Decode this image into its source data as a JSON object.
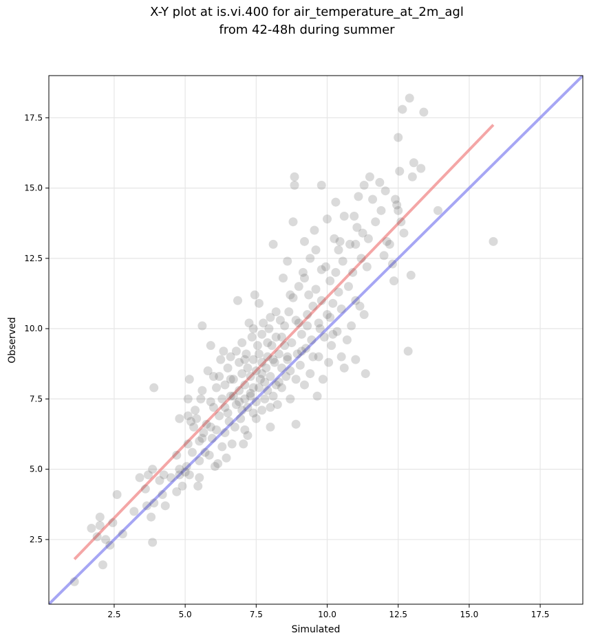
{
  "chart_data": {
    "type": "scatter",
    "title": [
      "X-Y plot at is.vi.400 for air_temperature_at_2m_agl",
      "from 42-48h during summer"
    ],
    "xlabel": "Simulated",
    "ylabel": "Observed",
    "xlim": [
      0.2,
      19.0
    ],
    "ylim": [
      0.2,
      19.0
    ],
    "grid": true,
    "xticks": [
      2.5,
      5.0,
      7.5,
      10.0,
      12.5,
      15.0,
      17.5
    ],
    "yticks": [
      2.5,
      5.0,
      7.5,
      10.0,
      12.5,
      15.0,
      17.5
    ],
    "xtick_labels": [
      "2.5",
      "5.0",
      "7.5",
      "10.0",
      "12.5",
      "15.0",
      "17.5"
    ],
    "ytick_labels": [
      "2.5",
      "5.0",
      "7.5",
      "10.0",
      "12.5",
      "15.0",
      "17.5"
    ],
    "colors": {
      "points": "#555555",
      "fit_line": "#f08080",
      "identity_line": "#8080f0",
      "grid": "#e6e6e6"
    },
    "lines": [
      {
        "kind": "identity",
        "x": [
          0.2,
          19.0
        ],
        "y": [
          0.2,
          19.0
        ]
      },
      {
        "kind": "fit",
        "x": [
          1.1,
          15.85
        ],
        "y": [
          1.8,
          17.25
        ]
      }
    ],
    "points": [
      [
        1.1,
        1.0
      ],
      [
        1.7,
        2.9
      ],
      [
        1.9,
        2.6
      ],
      [
        2.0,
        3.3
      ],
      [
        2.0,
        3.0
      ],
      [
        2.1,
        1.6
      ],
      [
        2.2,
        2.5
      ],
      [
        2.35,
        2.3
      ],
      [
        2.45,
        3.1
      ],
      [
        2.6,
        4.1
      ],
      [
        2.8,
        2.7
      ],
      [
        3.2,
        3.5
      ],
      [
        3.4,
        4.7
      ],
      [
        3.6,
        4.3
      ],
      [
        3.65,
        3.7
      ],
      [
        3.7,
        4.8
      ],
      [
        3.8,
        3.3
      ],
      [
        3.85,
        2.4
      ],
      [
        3.85,
        5.0
      ],
      [
        3.9,
        7.9
      ],
      [
        3.9,
        3.8
      ],
      [
        4.1,
        4.6
      ],
      [
        4.2,
        4.1
      ],
      [
        4.25,
        4.8
      ],
      [
        4.3,
        3.7
      ],
      [
        4.5,
        4.7
      ],
      [
        4.7,
        4.2
      ],
      [
        4.7,
        5.5
      ],
      [
        4.8,
        4.8
      ],
      [
        4.8,
        5.0
      ],
      [
        4.8,
        6.8
      ],
      [
        4.9,
        4.4
      ],
      [
        5.0,
        4.9
      ],
      [
        5.05,
        5.1
      ],
      [
        5.1,
        5.9
      ],
      [
        5.1,
        6.9
      ],
      [
        5.1,
        7.5
      ],
      [
        5.15,
        4.8
      ],
      [
        5.15,
        8.2
      ],
      [
        5.2,
        6.7
      ],
      [
        5.25,
        5.6
      ],
      [
        5.3,
        6.5
      ],
      [
        5.35,
        7.1
      ],
      [
        5.4,
        6.8
      ],
      [
        5.45,
        4.4
      ],
      [
        5.5,
        4.7
      ],
      [
        5.5,
        5.3
      ],
      [
        5.5,
        6.0
      ],
      [
        5.55,
        7.5
      ],
      [
        5.6,
        7.8
      ],
      [
        5.6,
        10.1
      ],
      [
        5.65,
        6.3
      ],
      [
        5.7,
        5.6
      ],
      [
        5.75,
        6.6
      ],
      [
        5.8,
        8.5
      ],
      [
        5.85,
        5.5
      ],
      [
        5.9,
        7.4
      ],
      [
        5.9,
        9.4
      ],
      [
        5.95,
        6.1
      ],
      [
        6.0,
        7.2
      ],
      [
        6.0,
        8.3
      ],
      [
        6.05,
        5.1
      ],
      [
        6.1,
        6.4
      ],
      [
        6.1,
        7.9
      ],
      [
        6.15,
        5.2
      ],
      [
        6.2,
        6.9
      ],
      [
        6.25,
        8.9
      ],
      [
        6.3,
        5.8
      ],
      [
        6.3,
        7.5
      ],
      [
        6.35,
        9.2
      ],
      [
        6.4,
        6.3
      ],
      [
        6.4,
        8.0
      ],
      [
        6.45,
        5.4
      ],
      [
        6.5,
        7.0
      ],
      [
        6.5,
        8.6
      ],
      [
        6.55,
        6.7
      ],
      [
        6.6,
        7.6
      ],
      [
        6.6,
        9.0
      ],
      [
        6.65,
        5.9
      ],
      [
        6.7,
        8.2
      ],
      [
        6.75,
        6.5
      ],
      [
        6.8,
        7.3
      ],
      [
        6.8,
        9.2
      ],
      [
        6.85,
        11.0
      ],
      [
        6.9,
        7.8
      ],
      [
        6.9,
        8.8
      ],
      [
        6.95,
        6.8
      ],
      [
        7.0,
        7.1
      ],
      [
        7.0,
        8.4
      ],
      [
        7.0,
        9.5
      ],
      [
        7.05,
        5.9
      ],
      [
        7.1,
        6.4
      ],
      [
        7.1,
        7.5
      ],
      [
        7.1,
        8.0
      ],
      [
        7.15,
        9.1
      ],
      [
        7.2,
        6.2
      ],
      [
        7.2,
        7.2
      ],
      [
        7.2,
        8.6
      ],
      [
        7.25,
        10.2
      ],
      [
        7.3,
        7.7
      ],
      [
        7.3,
        8.3
      ],
      [
        7.35,
        9.7
      ],
      [
        7.4,
        7.0
      ],
      [
        7.4,
        7.9
      ],
      [
        7.4,
        8.9
      ],
      [
        7.45,
        11.2
      ],
      [
        7.5,
        6.8
      ],
      [
        7.5,
        7.4
      ],
      [
        7.5,
        8.5
      ],
      [
        7.55,
        9.4
      ],
      [
        7.6,
        10.9
      ],
      [
        7.6,
        7.9
      ],
      [
        7.65,
        8.2
      ],
      [
        7.7,
        7.1
      ],
      [
        7.7,
        8.8
      ],
      [
        7.7,
        9.8
      ],
      [
        7.75,
        10.2
      ],
      [
        7.8,
        7.5
      ],
      [
        7.8,
        8.1
      ],
      [
        7.85,
        8.6
      ],
      [
        7.9,
        9.0
      ],
      [
        7.9,
        7.8
      ],
      [
        7.95,
        10.0
      ],
      [
        8.0,
        6.5
      ],
      [
        8.0,
        7.2
      ],
      [
        8.0,
        8.3
      ],
      [
        8.05,
        9.4
      ],
      [
        8.1,
        7.6
      ],
      [
        8.1,
        13.0
      ],
      [
        8.15,
        8.8
      ],
      [
        8.2,
        9.7
      ],
      [
        8.2,
        10.6
      ],
      [
        8.25,
        7.3
      ],
      [
        8.3,
        8.1
      ],
      [
        8.3,
        9.1
      ],
      [
        8.35,
        10.3
      ],
      [
        8.4,
        7.9
      ],
      [
        8.4,
        8.6
      ],
      [
        8.45,
        11.8
      ],
      [
        8.5,
        9.4
      ],
      [
        8.5,
        10.1
      ],
      [
        8.55,
        8.3
      ],
      [
        8.6,
        12.4
      ],
      [
        8.6,
        9.0
      ],
      [
        8.65,
        10.6
      ],
      [
        8.7,
        7.5
      ],
      [
        8.7,
        8.5
      ],
      [
        8.75,
        9.5
      ],
      [
        8.8,
        11.1
      ],
      [
        8.8,
        13.8
      ],
      [
        8.85,
        15.4
      ],
      [
        8.85,
        15.1
      ],
      [
        8.9,
        6.6
      ],
      [
        8.9,
        8.2
      ],
      [
        8.95,
        9.1
      ],
      [
        9.0,
        10.2
      ],
      [
        9.0,
        11.5
      ],
      [
        9.05,
        8.7
      ],
      [
        9.1,
        9.8
      ],
      [
        9.15,
        12.0
      ],
      [
        9.2,
        13.1
      ],
      [
        9.2,
        8.0
      ],
      [
        9.25,
        9.3
      ],
      [
        9.3,
        10.5
      ],
      [
        9.35,
        11.2
      ],
      [
        9.4,
        12.5
      ],
      [
        9.4,
        8.4
      ],
      [
        9.45,
        9.6
      ],
      [
        9.5,
        10.8
      ],
      [
        9.55,
        13.5
      ],
      [
        9.6,
        11.4
      ],
      [
        9.6,
        12.8
      ],
      [
        9.65,
        7.6
      ],
      [
        9.7,
        9.0
      ],
      [
        9.75,
        10.0
      ],
      [
        9.8,
        15.1
      ],
      [
        9.8,
        11.0
      ],
      [
        9.85,
        8.2
      ],
      [
        9.9,
        9.7
      ],
      [
        9.95,
        12.2
      ],
      [
        10.0,
        13.9
      ],
      [
        10.0,
        10.5
      ],
      [
        10.05,
        8.8
      ],
      [
        10.1,
        11.7
      ],
      [
        10.15,
        9.4
      ],
      [
        10.2,
        10.9
      ],
      [
        10.25,
        13.2
      ],
      [
        10.3,
        14.5
      ],
      [
        10.3,
        12.0
      ],
      [
        10.35,
        9.9
      ],
      [
        10.4,
        11.3
      ],
      [
        10.45,
        13.1
      ],
      [
        10.5,
        9.0
      ],
      [
        10.5,
        10.7
      ],
      [
        10.55,
        12.4
      ],
      [
        10.6,
        14.0
      ],
      [
        10.6,
        8.6
      ],
      [
        10.7,
        9.6
      ],
      [
        10.75,
        11.5
      ],
      [
        10.8,
        13.0
      ],
      [
        10.85,
        10.1
      ],
      [
        10.9,
        12.0
      ],
      [
        10.95,
        14.0
      ],
      [
        11.0,
        8.9
      ],
      [
        11.0,
        11.0
      ],
      [
        11.05,
        13.6
      ],
      [
        11.1,
        14.7
      ],
      [
        11.15,
        10.8
      ],
      [
        11.2,
        12.5
      ],
      [
        11.25,
        13.4
      ],
      [
        11.3,
        15.1
      ],
      [
        11.3,
        10.5
      ],
      [
        11.35,
        8.4
      ],
      [
        11.4,
        12.2
      ],
      [
        11.45,
        13.2
      ],
      [
        11.5,
        15.4
      ],
      [
        11.6,
        14.6
      ],
      [
        11.7,
        13.8
      ],
      [
        11.85,
        15.2
      ],
      [
        11.9,
        14.2
      ],
      [
        12.0,
        12.6
      ],
      [
        12.05,
        14.9
      ],
      [
        12.1,
        13.1
      ],
      [
        12.2,
        13.0
      ],
      [
        12.3,
        12.3
      ],
      [
        12.35,
        11.7
      ],
      [
        12.4,
        14.6
      ],
      [
        12.45,
        14.4
      ],
      [
        12.5,
        16.8
      ],
      [
        12.5,
        14.2
      ],
      [
        12.55,
        15.6
      ],
      [
        12.6,
        13.8
      ],
      [
        12.65,
        17.8
      ],
      [
        12.7,
        13.4
      ],
      [
        12.85,
        9.2
      ],
      [
        12.9,
        18.2
      ],
      [
        12.95,
        11.9
      ],
      [
        13.0,
        15.4
      ],
      [
        13.05,
        15.9
      ],
      [
        13.3,
        15.7
      ],
      [
        13.4,
        17.7
      ],
      [
        13.9,
        14.2
      ],
      [
        15.85,
        13.1
      ],
      [
        6.2,
        8.3
      ],
      [
        6.7,
        7.6
      ],
      [
        7.1,
        8.9
      ],
      [
        7.6,
        9.1
      ],
      [
        8.1,
        8.9
      ],
      [
        8.4,
        9.7
      ],
      [
        8.9,
        10.3
      ],
      [
        9.3,
        10.1
      ],
      [
        9.7,
        10.2
      ],
      [
        10.1,
        10.4
      ],
      [
        6.9,
        7.4
      ],
      [
        7.3,
        7.6
      ],
      [
        7.7,
        8.4
      ],
      [
        8.2,
        8.0
      ],
      [
        8.6,
        8.9
      ],
      [
        9.1,
        9.2
      ],
      [
        9.5,
        9.0
      ],
      [
        10.2,
        9.8
      ],
      [
        6.4,
        7.2
      ],
      [
        5.9,
        6.5
      ],
      [
        5.6,
        6.1
      ],
      [
        6.6,
        8.2
      ],
      [
        7.4,
        10.0
      ],
      [
        8.0,
        10.4
      ],
      [
        8.7,
        11.2
      ],
      [
        9.2,
        11.8
      ],
      [
        9.8,
        12.1
      ],
      [
        10.4,
        12.8
      ],
      [
        11.0,
        13.0
      ],
      [
        7.9,
        9.5
      ]
    ]
  }
}
